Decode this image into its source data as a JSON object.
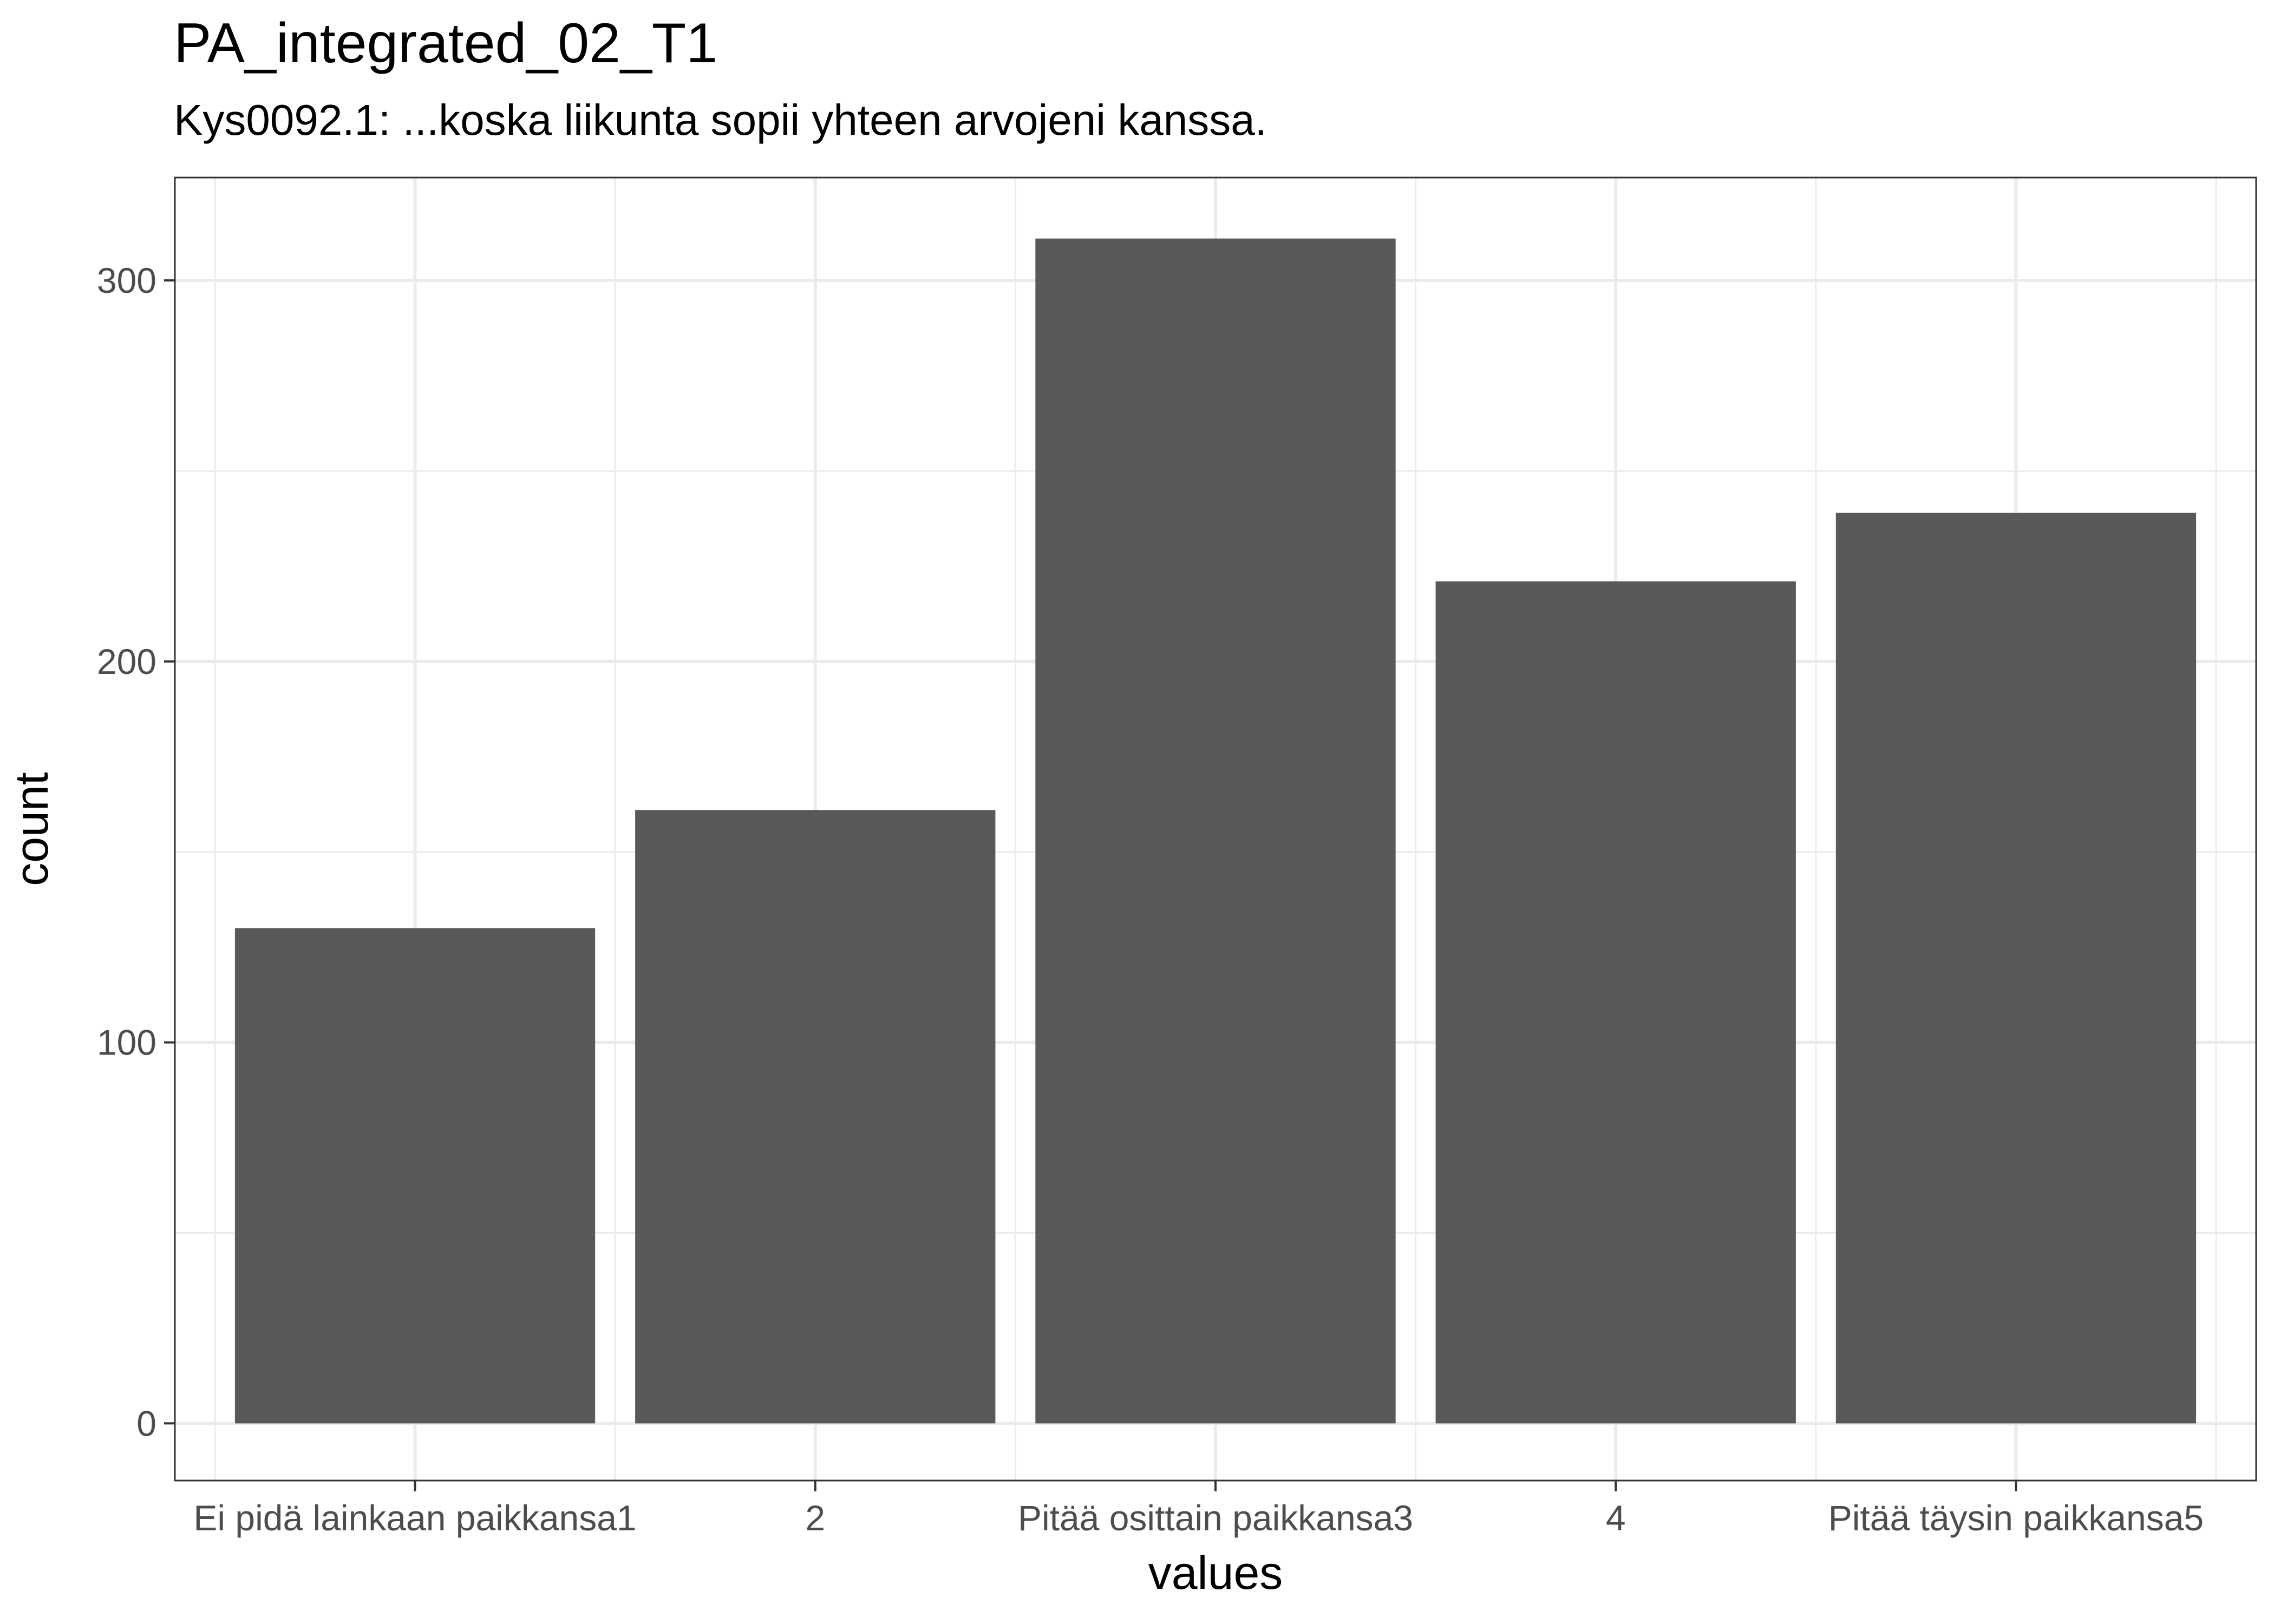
{
  "chart_data": {
    "type": "bar",
    "title": "PA_integrated_02_T1",
    "subtitle": "Kys0092.1: ...koska liikunta sopii yhteen arvojeni kanssa.",
    "xlabel": "values",
    "ylabel": "count",
    "categories": [
      "Ei pidä lainkaan paikkansa1",
      "2",
      "Pitää osittain paikkansa3",
      "4",
      "Pitää täysin paikkansa5"
    ],
    "values": [
      130,
      161,
      311,
      221,
      239
    ],
    "ylim": [
      -15,
      327
    ],
    "yticks": [
      0,
      100,
      200,
      300
    ],
    "ytick_labels": [
      "0",
      "100",
      "200",
      "300"
    ],
    "grid": true,
    "bar_color": "#595959",
    "grid_color": "#ebebeb",
    "panel_border_color": "#333333"
  }
}
